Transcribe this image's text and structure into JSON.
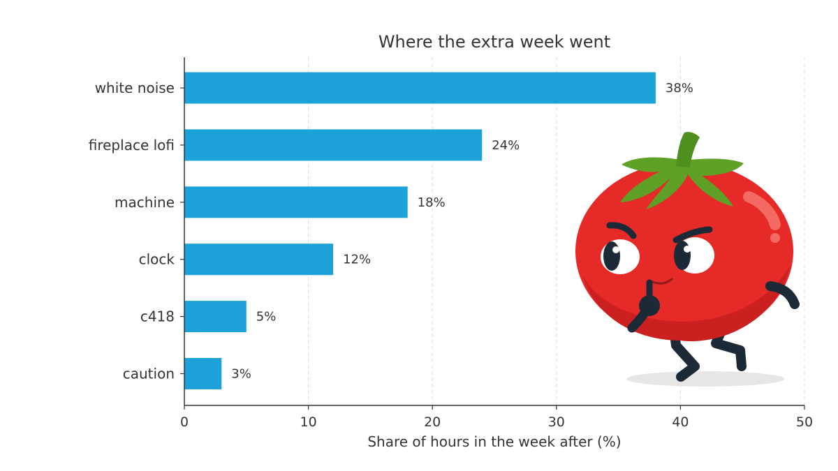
{
  "chart_data": {
    "type": "bar",
    "orientation": "horizontal",
    "title": "Where the extra week went",
    "xlabel": "Share of hours in the week after (%)",
    "ylabel": "",
    "categories": [
      "white noise",
      "fireplace lofi",
      "machine",
      "clock",
      "c418",
      "caution"
    ],
    "values": [
      38,
      24,
      18,
      12,
      5,
      3
    ],
    "data_labels": [
      "38%",
      "24%",
      "18%",
      "12%",
      "5%",
      "3%"
    ],
    "xlim": [
      0,
      50
    ],
    "xticks": [
      0,
      10,
      20,
      30,
      40,
      50
    ],
    "xtick_labels": [
      "0",
      "10",
      "20",
      "30",
      "40",
      "50"
    ],
    "grid": "x-dashed",
    "bar_color": "#1ca1d8"
  },
  "illustration": {
    "icon": "angry-tomato-mascot-icon"
  },
  "colors": {
    "bar": "#1ca1d8",
    "text": "#333333",
    "grid": "#dddddd",
    "axis": "#333333"
  }
}
